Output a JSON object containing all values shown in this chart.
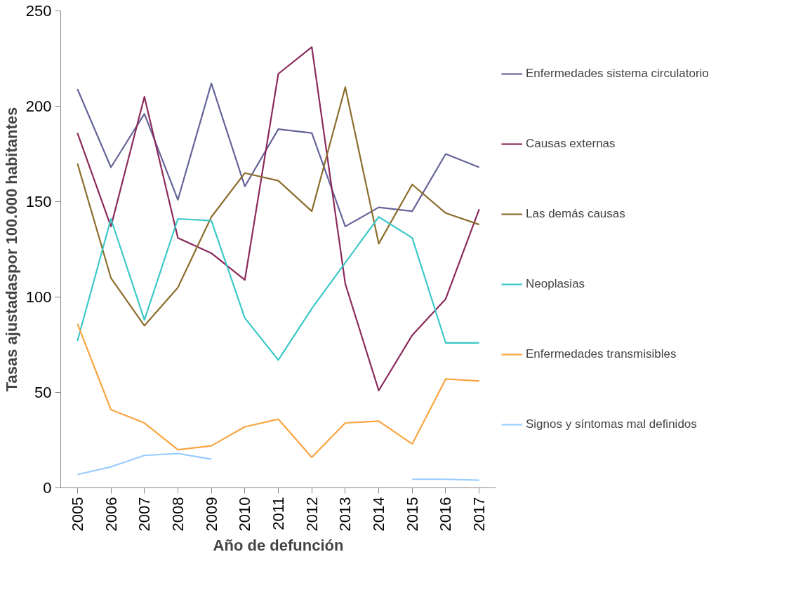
{
  "chart_data": {
    "type": "line",
    "xlabel": "Año de defunción",
    "ylabel": "Tasas ajustadaspor 100.000 habitantes",
    "categories": [
      "2005",
      "2006",
      "2007",
      "2008",
      "2009",
      "2010",
      "2011",
      "2012",
      "2013",
      "2014",
      "2015",
      "2016",
      "2017"
    ],
    "ylim": [
      0,
      250
    ],
    "yticks": [
      0,
      50,
      100,
      150,
      200,
      250
    ],
    "grid": false,
    "legend": "right",
    "marker": "none",
    "line_style": "solid",
    "series": [
      {
        "name": "Enfermedades sistema circulatorio",
        "color": "#65659a",
        "values": [
          209,
          168,
          196,
          151,
          212,
          158,
          188,
          186,
          137,
          147,
          145,
          175,
          168
        ]
      },
      {
        "name": "Causas externas",
        "color": "#8b2a5c",
        "values": [
          186,
          137,
          205,
          131,
          123,
          109,
          217,
          231,
          107,
          51,
          80,
          99,
          146
        ]
      },
      {
        "name": "Las demás causas",
        "color": "#8c6d2c",
        "values": [
          170,
          110,
          85,
          105,
          142,
          165,
          161,
          145,
          210,
          128,
          159,
          144,
          138
        ]
      },
      {
        "name": "Neoplasias",
        "color": "#3cc8c8",
        "values": [
          77,
          141,
          88,
          141,
          140,
          89,
          67,
          94,
          118,
          142,
          131,
          76,
          76
        ]
      },
      {
        "name": "Enfermedades transmisibles",
        "color": "#f9a541",
        "values": [
          86,
          41,
          34,
          20,
          22,
          32,
          36,
          16,
          34,
          35,
          23,
          57,
          56
        ]
      },
      {
        "name": "Signos y síntomas mal definidos",
        "color": "#99ccff",
        "values": [
          7,
          11,
          17,
          18,
          15,
          null,
          null,
          null,
          null,
          null,
          4.5,
          4.5,
          4
        ]
      }
    ]
  }
}
